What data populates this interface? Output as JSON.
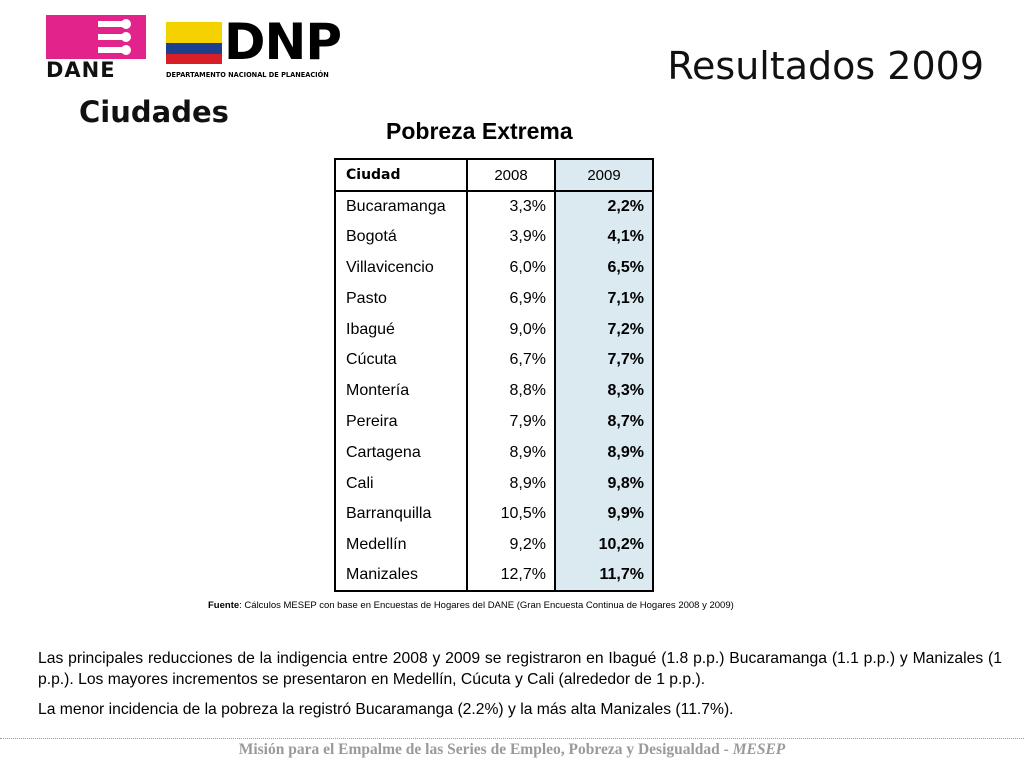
{
  "logos": {
    "dane_text": "DANE",
    "dnp_text": "DNP",
    "dnp_subtitle": "DEPARTAMENTO NACIONAL DE PLANEACIÓN"
  },
  "colors": {
    "dane_magenta": "#e3238c",
    "flag_yellow": "#f6d100",
    "flag_blue": "#1e3f8e",
    "flag_red": "#d81e26",
    "table_highlight": "#dbe9f1",
    "footer_gray": "#9a9a9a"
  },
  "header": {
    "title": "Resultados 2009",
    "section": "Ciudades"
  },
  "table": {
    "title": "Pobreza Extrema",
    "columns": [
      "Ciudad",
      "2008",
      "2009"
    ],
    "rows": [
      {
        "city": "Bucaramanga",
        "v2008": "3,3%",
        "v2009": "2,2%"
      },
      {
        "city": "Bogotá",
        "v2008": "3,9%",
        "v2009": "4,1%"
      },
      {
        "city": "Villavicencio",
        "v2008": "6,0%",
        "v2009": "6,5%"
      },
      {
        "city": "Pasto",
        "v2008": "6,9%",
        "v2009": "7,1%"
      },
      {
        "city": "Ibagué",
        "v2008": "9,0%",
        "v2009": "7,2%"
      },
      {
        "city": "Cúcuta",
        "v2008": "6,7%",
        "v2009": "7,7%"
      },
      {
        "city": "Montería",
        "v2008": "8,8%",
        "v2009": "8,3%"
      },
      {
        "city": "Pereira",
        "v2008": "7,9%",
        "v2009": "8,7%"
      },
      {
        "city": "Cartagena",
        "v2008": "8,9%",
        "v2009": "8,9%"
      },
      {
        "city": "Cali",
        "v2008": "8,9%",
        "v2009": "9,8%"
      },
      {
        "city": "Barranquilla",
        "v2008": "10,5%",
        "v2009": "9,9%"
      },
      {
        "city": "Medellín",
        "v2008": "9,2%",
        "v2009": "10,2%"
      },
      {
        "city": "Manizales",
        "v2008": "12,7%",
        "v2009": "11,7%"
      }
    ],
    "source_label": "Fuente",
    "source_text": ": Cálculos MESEP con base en Encuestas de Hogares del DANE (Gran Encuesta Continua de Hogares 2008 y 2009)"
  },
  "body": {
    "paragraph_1": "Las principales reducciones de la indigencia entre 2008 y 2009 se registraron en Ibagué (1.8 p.p.) Bucaramanga (1.1 p.p.) y Manizales (1 p.p.). Los mayores incrementos se presentaron en Medellín, Cúcuta y Cali (alrededor de 1 p.p.).",
    "paragraph_2": "La menor incidencia de la pobreza la registró Bucaramanga (2.2%) y la más alta Manizales (11.7%)."
  },
  "footer": {
    "text": "Misión para el Empalme de las Series de Empleo, Pobreza y Desigualdad - ",
    "italic": "MESEP"
  }
}
